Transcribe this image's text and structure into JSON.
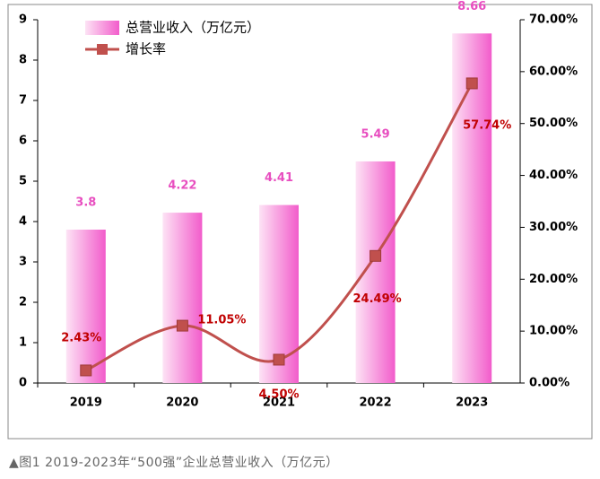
{
  "chart_data": {
    "type": "bar",
    "categories": [
      "2019",
      "2020",
      "2021",
      "2022",
      "2023"
    ],
    "series": [
      {
        "name": "总营业收入（万亿元）",
        "type": "bar",
        "color": "#f25ccb",
        "values": [
          3.8,
          4.22,
          4.41,
          5.49,
          8.66
        ]
      },
      {
        "name": "增长率",
        "type": "line",
        "axis": "y2",
        "color": "#c0504d",
        "values": [
          2.43,
          11.05,
          4.5,
          24.49,
          57.74
        ],
        "value_labels": [
          "2.43%",
          "11.05%",
          "4.50%",
          "24.49%",
          "57.74%"
        ]
      }
    ],
    "ylim": [
      0,
      9
    ],
    "yticks": [
      0,
      1,
      2,
      3,
      4,
      5,
      6,
      7,
      8,
      9
    ],
    "y2lim": [
      0,
      70
    ],
    "y2ticks": [
      {
        "value": 0,
        "label": "0.00%"
      },
      {
        "value": 10,
        "label": "10.00%"
      },
      {
        "value": 20,
        "label": "20.00%"
      },
      {
        "value": 30,
        "label": "30.00%"
      },
      {
        "value": 40,
        "label": "40.00%"
      },
      {
        "value": 50,
        "label": "50.00%"
      },
      {
        "value": 60,
        "label": "60.00%"
      },
      {
        "value": 70,
        "label": "70.00%"
      }
    ],
    "caption": "▲图1 2019-2023年“500强”企业总营业收入（万亿元）"
  }
}
